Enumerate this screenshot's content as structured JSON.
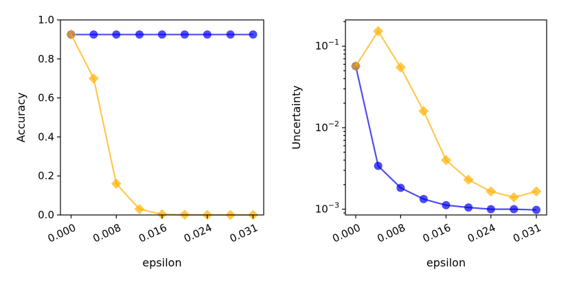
{
  "chart_data": [
    {
      "type": "line",
      "xlabel": "epsilon",
      "ylabel": "Accuracy",
      "ylim": [
        0,
        1.0
      ],
      "yscale": "linear",
      "x": [
        0.0,
        0.0039,
        0.0078,
        0.0118,
        0.0157,
        0.0196,
        0.0235,
        0.0275,
        0.0314
      ],
      "x_tick_values": [
        0.0,
        0.0078,
        0.0157,
        0.0235,
        0.0314
      ],
      "x_tick_labels": [
        "0.000",
        "0.008",
        "0.016",
        "0.024",
        "0.031"
      ],
      "y_tick_values": [
        0.0,
        0.2,
        0.4,
        0.6,
        0.8,
        1.0
      ],
      "y_tick_labels": [
        "0.0",
        "0.2",
        "0.4",
        "0.6",
        "0.8",
        "1.0"
      ],
      "grid": false,
      "series": [
        {
          "color": "#0000ee",
          "marker": "circle",
          "values": [
            0.925,
            0.925,
            0.925,
            0.925,
            0.925,
            0.925,
            0.925,
            0.925,
            0.925
          ]
        },
        {
          "color": "#ffb000",
          "marker": "diamond",
          "values": [
            0.925,
            0.7,
            0.16,
            0.03,
            0.003,
            0.001,
            0.0,
            0.0,
            0.0
          ]
        }
      ]
    },
    {
      "type": "line",
      "xlabel": "epsilon",
      "ylabel": "Uncertainty",
      "yscale": "log",
      "ylim": [
        0.00085,
        0.21
      ],
      "x": [
        0.0,
        0.0039,
        0.0078,
        0.0118,
        0.0157,
        0.0196,
        0.0235,
        0.0275,
        0.0314
      ],
      "x_tick_values": [
        0.0,
        0.0078,
        0.0157,
        0.0235,
        0.0314
      ],
      "x_tick_labels": [
        "0.000",
        "0.008",
        "0.016",
        "0.024",
        "0.031"
      ],
      "y_tick_values": [
        0.001,
        0.01,
        0.1
      ],
      "y_tick_labels": [
        {
          "base": "10",
          "exp": "−3"
        },
        {
          "base": "10",
          "exp": "−2"
        },
        {
          "base": "10",
          "exp": "−1"
        }
      ],
      "grid": false,
      "series": [
        {
          "color": "#0000ee",
          "marker": "circle",
          "values": [
            0.057,
            0.0034,
            0.00183,
            0.00133,
            0.00112,
            0.00105,
            0.001,
            0.001,
            0.00098
          ]
        },
        {
          "color": "#ffb000",
          "marker": "diamond",
          "values": [
            0.057,
            0.153,
            0.055,
            0.016,
            0.004,
            0.0023,
            0.00165,
            0.0014,
            0.00165
          ]
        }
      ]
    }
  ]
}
